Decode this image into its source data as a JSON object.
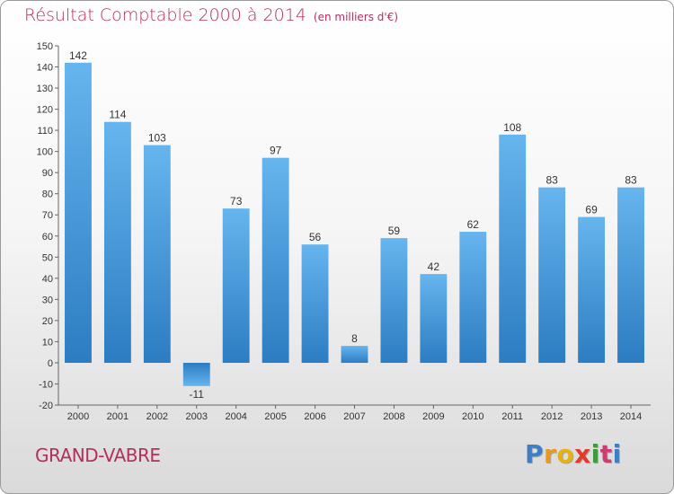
{
  "chart_data": {
    "type": "bar",
    "title": "Résultat Comptable 2000 à 2014",
    "subtitle": "(en milliers d'€)",
    "categories": [
      "2000",
      "2001",
      "2002",
      "2003",
      "2004",
      "2005",
      "2006",
      "2007",
      "2008",
      "2009",
      "2010",
      "2011",
      "2012",
      "2013",
      "2014"
    ],
    "values": [
      142,
      114,
      103,
      -11,
      73,
      97,
      56,
      8,
      59,
      42,
      62,
      108,
      83,
      69,
      83
    ],
    "ylim": [
      -20,
      150
    ],
    "ytick_step": 10,
    "grid": false,
    "legend": "none",
    "bar_color": "#3a8fd6"
  },
  "footer": {
    "commune": "GRAND-VABRE",
    "logo_letters": [
      "P",
      "r",
      "o",
      "x",
      "i",
      "t",
      "i"
    ],
    "logo_colors": [
      "#3d7fc7",
      "#e89a1c",
      "#e6b213",
      "#e23a2b",
      "#3d9a3d",
      "#cf3a6f",
      "#3d7fc7"
    ]
  }
}
